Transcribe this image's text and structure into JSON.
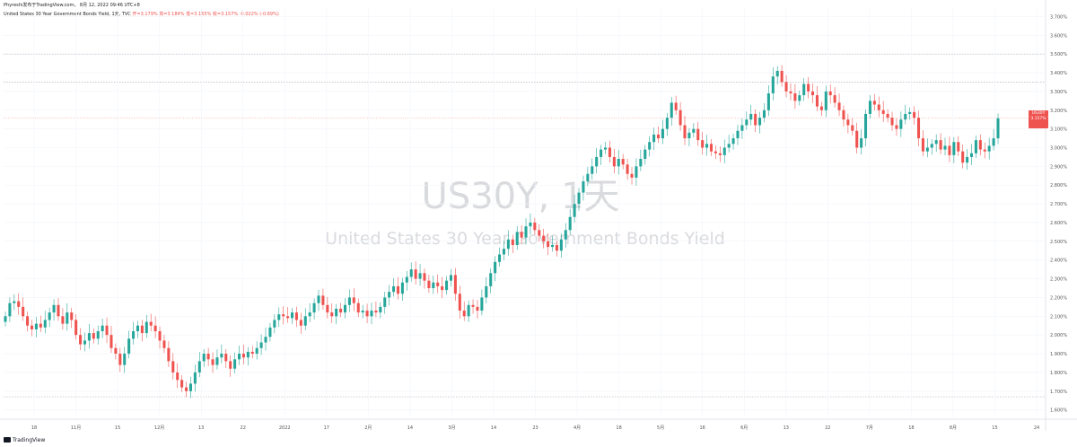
{
  "header": {
    "top_line": "Phyreshi发布于TradingView.com， 8月 12, 2022 09:46 UTC+8",
    "symbol_line": "United States 30 Year Government Bonds Yield, 1天, TVC",
    "ohlc": "开=3.179%  高=3.184%  低=3.155%  收=3.157%  -0.022% (-0.69%)"
  },
  "watermark": {
    "symbol": "US30Y, 1天",
    "description": "United States 30 Year Government Bonds Yield"
  },
  "price_tag": {
    "symbol": "US30Y",
    "price": "3.157%",
    "countdown": "15:13:58"
  },
  "footer": {
    "logo": "TradingView"
  },
  "colors": {
    "up": "#26a69a",
    "down": "#ef5350",
    "grid": "#f0f3fa",
    "hline": "#b2b5be"
  },
  "chart_data": {
    "type": "candlestick",
    "y_unit": "%",
    "ylim": [
      1.56,
      3.75
    ],
    "y_ticks": [
      "1.600%",
      "1.700%",
      "1.800%",
      "1.900%",
      "2.000%",
      "2.100%",
      "2.200%",
      "2.300%",
      "2.400%",
      "2.500%",
      "2.600%",
      "2.700%",
      "2.800%",
      "2.900%",
      "3.000%",
      "3.100%",
      "3.200%",
      "3.300%",
      "3.400%",
      "3.500%",
      "3.600%",
      "3.700%"
    ],
    "x_ticks": [
      "18",
      "11月",
      "15",
      "12月",
      "13",
      "22",
      "2022",
      "17",
      "2月",
      "14",
      "3月",
      "14",
      "23",
      "4月",
      "18",
      "5月",
      "16",
      "6月",
      "13",
      "22",
      "7月",
      "18",
      "8月",
      "15",
      "24"
    ],
    "horizontal_levels": [
      1.67,
      3.35,
      3.5
    ],
    "close_series": [
      2.1,
      2.17,
      2.18,
      2.15,
      2.1,
      2.05,
      2.03,
      2.06,
      2.04,
      2.08,
      2.12,
      2.16,
      2.1,
      2.06,
      2.12,
      2.08,
      2.0,
      1.95,
      1.97,
      2.01,
      1.98,
      2.02,
      2.05,
      2.0,
      1.93,
      1.9,
      1.84,
      1.9,
      1.98,
      2.02,
      2.05,
      2.01,
      2.07,
      2.05,
      2.02,
      1.97,
      1.93,
      1.86,
      1.8,
      1.76,
      1.72,
      1.7,
      1.74,
      1.8,
      1.86,
      1.9,
      1.87,
      1.84,
      1.88,
      1.9,
      1.86,
      1.82,
      1.87,
      1.9,
      1.88,
      1.91,
      1.9,
      1.93,
      1.96,
      1.99,
      2.04,
      2.08,
      2.11,
      2.1,
      2.09,
      2.12,
      2.08,
      2.05,
      2.1,
      2.12,
      2.17,
      2.21,
      2.16,
      2.12,
      2.1,
      2.14,
      2.12,
      2.16,
      2.2,
      2.17,
      2.12,
      2.13,
      2.1,
      2.13,
      2.12,
      2.15,
      2.2,
      2.23,
      2.26,
      2.22,
      2.28,
      2.31,
      2.35,
      2.3,
      2.33,
      2.29,
      2.25,
      2.28,
      2.26,
      2.24,
      2.29,
      2.32,
      2.22,
      2.13,
      2.1,
      2.16,
      2.15,
      2.13,
      2.2,
      2.26,
      2.33,
      2.39,
      2.43,
      2.46,
      2.51,
      2.48,
      2.55,
      2.52,
      2.58,
      2.6,
      2.56,
      2.53,
      2.5,
      2.47,
      2.48,
      2.45,
      2.51,
      2.56,
      2.63,
      2.7,
      2.76,
      2.82,
      2.86,
      2.9,
      2.95,
      2.99,
      3.0,
      2.95,
      2.9,
      2.94,
      2.91,
      2.86,
      2.84,
      2.9,
      2.94,
      2.99,
      3.03,
      3.07,
      3.05,
      3.1,
      3.16,
      3.24,
      3.2,
      3.12,
      3.05,
      3.08,
      3.1,
      3.04,
      3.0,
      3.02,
      2.98,
      2.97,
      2.96,
      3.0,
      3.02,
      3.05,
      3.09,
      3.12,
      3.15,
      3.18,
      3.12,
      3.16,
      3.2,
      3.29,
      3.38,
      3.41,
      3.35,
      3.3,
      3.29,
      3.25,
      3.28,
      3.34,
      3.3,
      3.28,
      3.22,
      3.2,
      3.3,
      3.28,
      3.24,
      3.2,
      3.15,
      3.12,
      3.09,
      3.0,
      3.05,
      3.18,
      3.25,
      3.23,
      3.2,
      3.18,
      3.16,
      3.12,
      3.1,
      3.15,
      3.18,
      3.19,
      3.16,
      3.05,
      2.98,
      3.0,
      3.02,
      3.04,
      2.99,
      3.01,
      2.96,
      3.03,
      2.98,
      2.92,
      2.95,
      2.97,
      3.04,
      2.99,
      2.98,
      3.01,
      3.05,
      3.157
    ],
    "open_series": [
      2.07,
      2.1,
      2.17,
      2.18,
      2.15,
      2.1,
      2.05,
      2.03,
      2.06,
      2.04,
      2.08,
      2.12,
      2.16,
      2.1,
      2.06,
      2.12,
      2.08,
      2.0,
      1.95,
      1.97,
      2.01,
      1.98,
      2.02,
      2.05,
      2.0,
      1.93,
      1.9,
      1.84,
      1.9,
      1.98,
      2.02,
      2.05,
      2.01,
      2.07,
      2.05,
      2.02,
      1.97,
      1.93,
      1.86,
      1.8,
      1.76,
      1.72,
      1.7,
      1.74,
      1.8,
      1.86,
      1.9,
      1.87,
      1.84,
      1.88,
      1.9,
      1.86,
      1.82,
      1.87,
      1.9,
      1.88,
      1.91,
      1.9,
      1.93,
      1.96,
      1.99,
      2.04,
      2.08,
      2.11,
      2.1,
      2.09,
      2.12,
      2.08,
      2.05,
      2.1,
      2.12,
      2.17,
      2.21,
      2.16,
      2.12,
      2.1,
      2.14,
      2.12,
      2.16,
      2.2,
      2.17,
      2.12,
      2.13,
      2.1,
      2.13,
      2.12,
      2.15,
      2.2,
      2.23,
      2.26,
      2.22,
      2.28,
      2.31,
      2.35,
      2.3,
      2.33,
      2.29,
      2.25,
      2.28,
      2.26,
      2.24,
      2.29,
      2.32,
      2.22,
      2.13,
      2.1,
      2.16,
      2.15,
      2.13,
      2.2,
      2.26,
      2.33,
      2.39,
      2.43,
      2.46,
      2.51,
      2.48,
      2.55,
      2.52,
      2.58,
      2.6,
      2.56,
      2.53,
      2.5,
      2.47,
      2.48,
      2.45,
      2.51,
      2.56,
      2.63,
      2.7,
      2.76,
      2.82,
      2.86,
      2.9,
      2.95,
      2.99,
      3.0,
      2.95,
      2.9,
      2.94,
      2.91,
      2.86,
      2.84,
      2.9,
      2.94,
      2.99,
      3.03,
      3.07,
      3.05,
      3.1,
      3.16,
      3.24,
      3.2,
      3.12,
      3.05,
      3.08,
      3.1,
      3.04,
      3.0,
      3.02,
      2.98,
      2.97,
      2.96,
      3.0,
      3.02,
      3.05,
      3.09,
      3.12,
      3.15,
      3.18,
      3.12,
      3.16,
      3.2,
      3.29,
      3.38,
      3.41,
      3.35,
      3.3,
      3.29,
      3.25,
      3.28,
      3.34,
      3.3,
      3.28,
      3.22,
      3.2,
      3.3,
      3.28,
      3.24,
      3.2,
      3.15,
      3.12,
      3.09,
      3.0,
      3.05,
      3.18,
      3.25,
      3.23,
      3.2,
      3.18,
      3.16,
      3.12,
      3.1,
      3.15,
      3.18,
      3.19,
      3.16,
      3.05,
      2.98,
      3.0,
      3.02,
      3.04,
      2.99,
      3.01,
      2.96,
      3.03,
      2.98,
      2.92,
      2.95,
      2.97,
      3.04,
      2.99,
      2.98,
      3.01,
      3.05,
      3.179
    ]
  }
}
